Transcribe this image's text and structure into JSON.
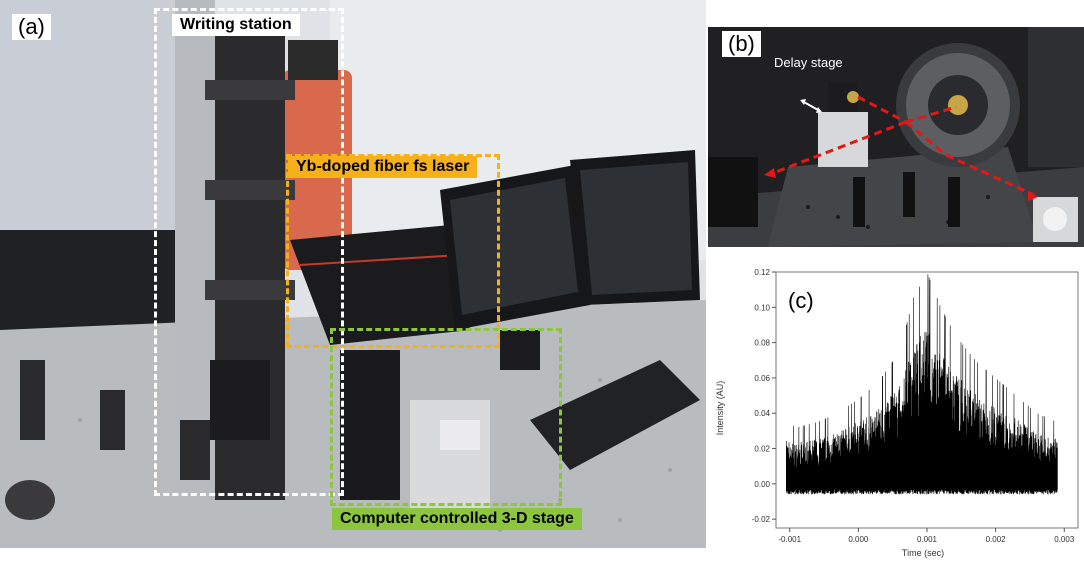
{
  "panels": {
    "a": {
      "letter": "(a)",
      "labels": {
        "writing_station": "Writing station",
        "laser": "Yb-doped fiber fs laser",
        "stage": "Computer controlled 3-D stage"
      },
      "colors": {
        "writing_station": "#ffffff",
        "laser": "#f5b01a",
        "stage": "#8cc63f"
      }
    },
    "b": {
      "letter": "(b)",
      "labels": {
        "delay_stage": "Delay stage"
      },
      "colors": {
        "beam": "#e01818"
      }
    },
    "c": {
      "letter": "(c)"
    }
  },
  "chart_data": {
    "type": "line",
    "title": "",
    "xlabel": "Time (sec)",
    "ylabel": "Intensity (AU)",
    "xlim": [
      -0.0012,
      0.0032
    ],
    "ylim": [
      -0.025,
      0.12
    ],
    "xticks": [
      -0.001,
      0.0,
      0.001,
      0.002,
      0.003
    ],
    "xtick_labels": [
      "-0.001",
      "0.000",
      "0.001",
      "0.002",
      "0.003"
    ],
    "yticks": [
      -0.02,
      0.0,
      0.02,
      0.04,
      0.06,
      0.08,
      0.1,
      0.12
    ],
    "ytick_labels": [
      "-0.02",
      "0.00",
      "0.02",
      "0.04",
      "0.06",
      "0.08",
      "0.10",
      "0.12"
    ],
    "envelope": {
      "x": [
        -0.00105,
        -0.0009,
        -0.0006,
        -0.0003,
        0.0,
        0.0003,
        0.0006,
        0.0008,
        0.001,
        0.0012,
        0.0014,
        0.0017,
        0.002,
        0.0023,
        0.0026,
        0.0029
      ],
      "upper": [
        0.035,
        0.032,
        0.035,
        0.04,
        0.048,
        0.058,
        0.075,
        0.105,
        0.12,
        0.1,
        0.085,
        0.07,
        0.06,
        0.05,
        0.04,
        0.035
      ],
      "lower": [
        -0.003,
        -0.003,
        -0.003,
        -0.003,
        -0.003,
        -0.003,
        -0.003,
        -0.003,
        -0.003,
        -0.003,
        -0.003,
        -0.003,
        -0.003,
        -0.003,
        -0.003,
        -0.003
      ]
    },
    "grid": false,
    "series_color": "#000000"
  }
}
